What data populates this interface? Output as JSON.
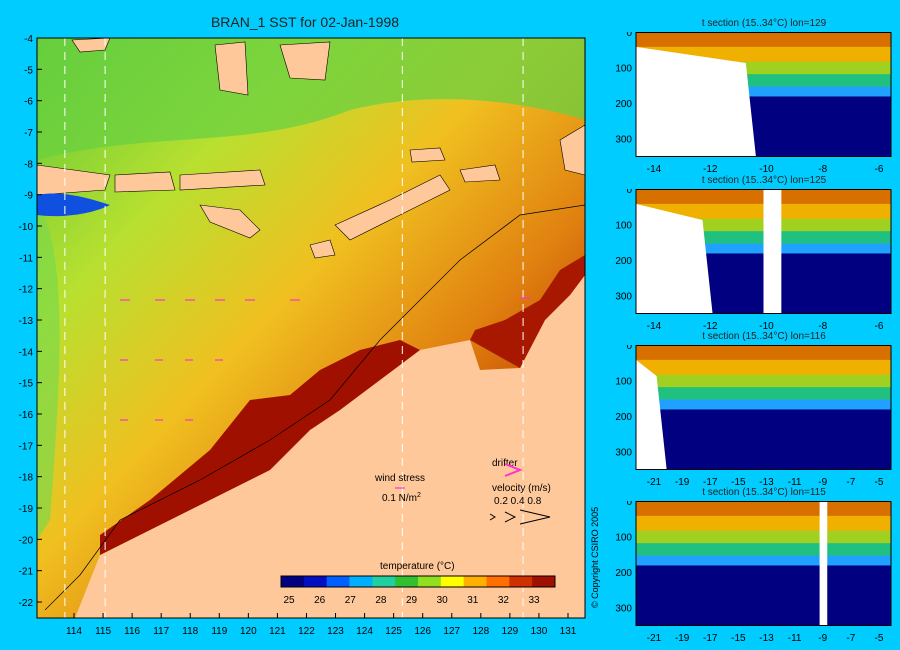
{
  "map": {
    "title": "BRAN_1 SST for 02-Jan-1998",
    "lon_ticks": [
      "114",
      "115",
      "116",
      "117",
      "118",
      "119",
      "120",
      "121",
      "122",
      "123",
      "124",
      "125",
      "126",
      "127",
      "128",
      "129",
      "130",
      "131"
    ],
    "lat_ticks": [
      "-4",
      "-5",
      "-6",
      "-7",
      "-8",
      "-9",
      "-10",
      "-11",
      "-12",
      "-13",
      "-14",
      "-15",
      "-16",
      "-17",
      "-18",
      "-19",
      "-20",
      "-21",
      "-22"
    ],
    "dashed_section_lons": [
      114.5,
      115.8,
      125.4,
      129.3
    ],
    "wind_label": "wind stress",
    "wind_unit": "0.1 N/m",
    "wind_unit_sup": "2",
    "drifter_label": "drifter",
    "velocity_label": "velocity (m/s)",
    "velocity_values": "0.2 0.4 0.8",
    "colorbar_title": "temperature (°C)",
    "colorbar_ticks": [
      "25",
      "26",
      "27",
      "28",
      "29",
      "30",
      "31",
      "32",
      "33"
    ],
    "colors": {
      "land": "#ffc89a",
      "background": "#00ccff",
      "warm": "#a01000",
      "cool": "#22bb22",
      "vector": "#ff33cc",
      "colorbar": [
        "#000080",
        "#0010c0",
        "#0060ff",
        "#00b0ff",
        "#20d0a0",
        "#30c030",
        "#90e020",
        "#ffff00",
        "#ffb000",
        "#ff7000",
        "#d03000",
        "#a01000"
      ]
    }
  },
  "sections": [
    {
      "title": "t section (15..34°C) lon=129",
      "x_ticks": [
        "-14",
        "-12",
        "-10",
        "-8",
        "-6"
      ],
      "y_ticks": [
        "0",
        "100",
        "200",
        "300"
      ]
    },
    {
      "title": "t section (15..34°C) lon=125",
      "x_ticks": [
        "-14",
        "-12",
        "-10",
        "-8",
        "-6"
      ],
      "y_ticks": [
        "0",
        "100",
        "200",
        "300"
      ]
    },
    {
      "title": "t section (15..34°C) lon=116",
      "x_ticks": [
        "-21",
        "-19",
        "-17",
        "-15",
        "-13",
        "-11",
        "-9",
        "-7",
        "-5"
      ],
      "y_ticks": [
        "0",
        "100",
        "200",
        "300"
      ]
    },
    {
      "title": "t section (15..34°C) lon=115",
      "x_ticks": [
        "-21",
        "-19",
        "-17",
        "-15",
        "-13",
        "-11",
        "-9",
        "-7",
        "-5"
      ],
      "y_ticks": [
        "0",
        "100",
        "200",
        "300"
      ]
    }
  ],
  "copyright": "© Copyright CSIRO 2005"
}
